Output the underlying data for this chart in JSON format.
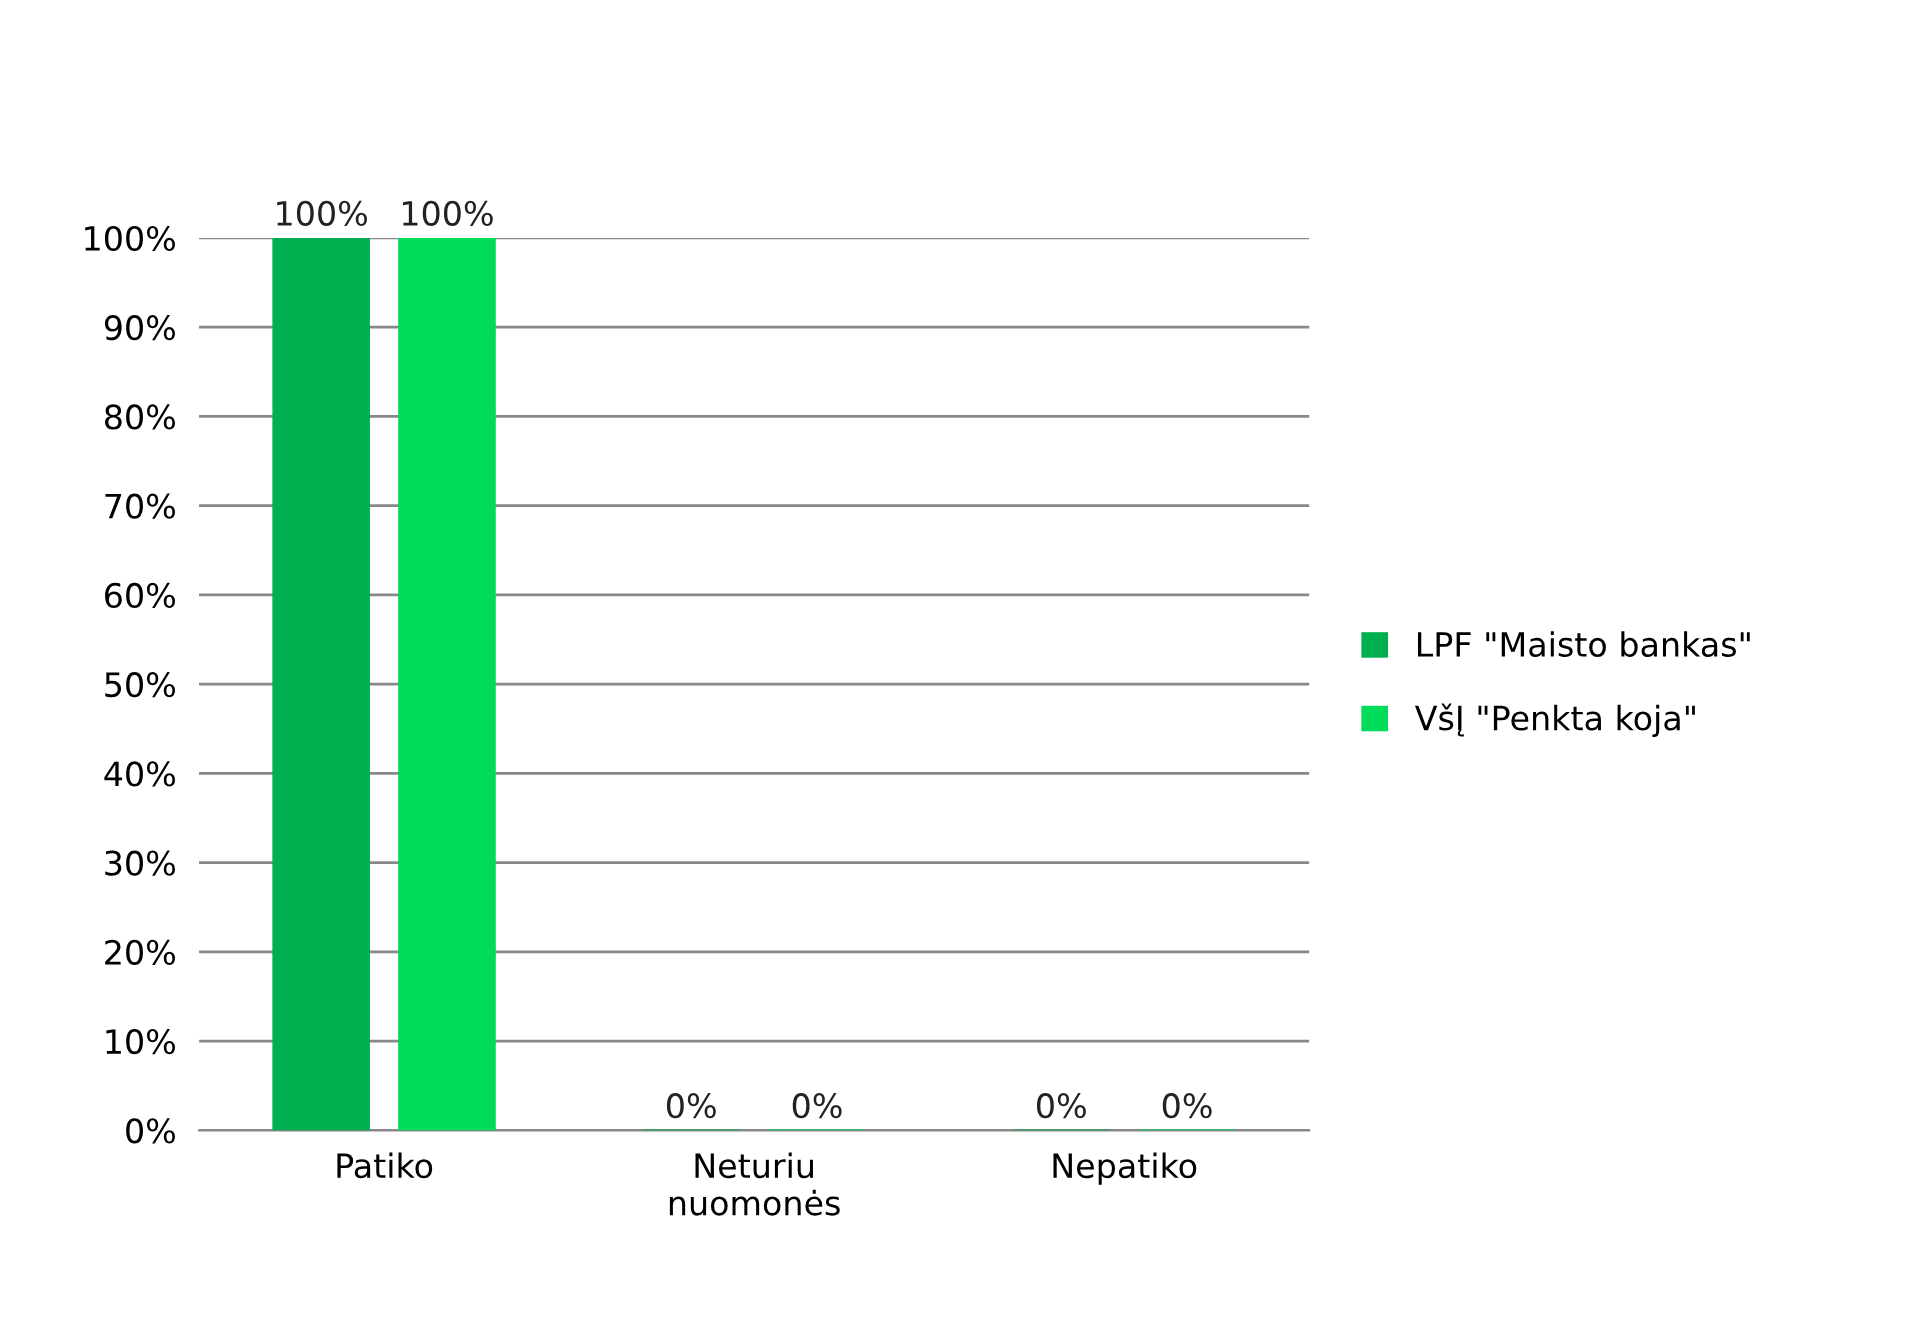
{
  "chart_data": {
    "type": "bar",
    "categories": [
      "Patiko",
      "Neturiu\nnuomonės",
      "Nepatiko"
    ],
    "series": [
      {
        "name": "LPF \"Maisto bankas\"",
        "color": "#00b050",
        "values": [
          100,
          0,
          0
        ],
        "value_labels": [
          "100%",
          "0%",
          "0%"
        ]
      },
      {
        "name": "VšĮ \"Penkta koja\"",
        "color": "#00dc5a",
        "values": [
          100,
          0,
          0
        ],
        "value_labels": [
          "100%",
          "0%",
          "0%"
        ]
      }
    ],
    "ylim": [
      0,
      100
    ],
    "yticks": [
      {
        "value": 0,
        "label": "0%"
      },
      {
        "value": 10,
        "label": "10%"
      },
      {
        "value": 20,
        "label": "20%"
      },
      {
        "value": 30,
        "label": "30%"
      },
      {
        "value": 40,
        "label": "40%"
      },
      {
        "value": 50,
        "label": "50%"
      },
      {
        "value": 60,
        "label": "60%"
      },
      {
        "value": 70,
        "label": "70%"
      },
      {
        "value": 80,
        "label": "80%"
      },
      {
        "value": 90,
        "label": "90%"
      },
      {
        "value": 100,
        "label": "100%"
      }
    ],
    "grid": "y",
    "legend": "right"
  }
}
